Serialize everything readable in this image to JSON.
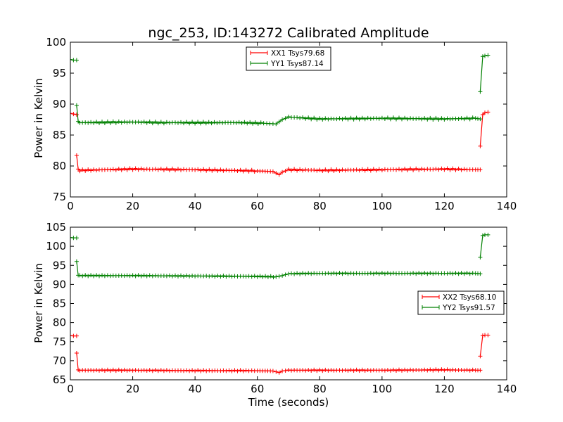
{
  "chart_data": [
    {
      "type": "line",
      "title": "ngc_253, ID:143272 Calibrated Amplitude",
      "xlabel": "",
      "ylabel": "Power in Kelvin",
      "xlim": [
        0,
        140
      ],
      "ylim": [
        75,
        100
      ],
      "xticks": [
        0,
        20,
        40,
        60,
        80,
        100,
        120,
        140
      ],
      "yticks": [
        75,
        80,
        85,
        90,
        95,
        100
      ],
      "legend_position": "top-center",
      "series": [
        {
          "name": "XX1 Tsys79.68",
          "color": "#ff0000",
          "marker": "+",
          "segments": [
            {
              "x": [
                0,
                1.0,
                2.0
              ],
              "y": [
                88.5,
                88.4,
                88.3
              ]
            },
            {
              "x": [
                2.0,
                2.5,
                3.0,
                20,
                40,
                60,
                65,
                67,
                68,
                70,
                80,
                100,
                120,
                130,
                131.5
              ],
              "y": [
                81.7,
                79.5,
                79.3,
                79.5,
                79.4,
                79.2,
                79.1,
                78.6,
                79.0,
                79.4,
                79.3,
                79.4,
                79.5,
                79.4,
                79.4
              ]
            },
            {
              "x": [
                131.5,
                132.3,
                133.0,
                134.0
              ],
              "y": [
                83.2,
                88.3,
                88.6,
                88.7
              ]
            }
          ]
        },
        {
          "name": "YY1 Tsys87.14",
          "color": "#008000",
          "marker": "+",
          "segments": [
            {
              "x": [
                0,
                1.0,
                2.0
              ],
              "y": [
                97.2,
                97.1,
                97.1
              ]
            },
            {
              "x": [
                2.0,
                2.5,
                3.0,
                20,
                30,
                40,
                55,
                62,
                66,
                68,
                70,
                80,
                100,
                120,
                130,
                131.5
              ],
              "y": [
                89.8,
                87.2,
                87.0,
                87.1,
                87.0,
                87.0,
                87.0,
                86.9,
                86.8,
                87.5,
                87.9,
                87.6,
                87.7,
                87.6,
                87.7,
                87.6
              ]
            },
            {
              "x": [
                131.5,
                132.3,
                133.0,
                134.0
              ],
              "y": [
                92.0,
                97.7,
                97.8,
                97.9
              ]
            }
          ]
        }
      ]
    },
    {
      "type": "line",
      "title": "",
      "xlabel": "Time (seconds)",
      "ylabel": "Power in Kelvin",
      "xlim": [
        0,
        140
      ],
      "ylim": [
        65,
        105
      ],
      "xticks": [
        0,
        20,
        40,
        60,
        80,
        100,
        120,
        140
      ],
      "yticks": [
        65,
        70,
        75,
        80,
        85,
        90,
        95,
        100,
        105
      ],
      "legend_position": "center-right",
      "series": [
        {
          "name": "XX2 Tsys68.10",
          "color": "#ff0000",
          "marker": "+",
          "segments": [
            {
              "x": [
                0,
                1.0,
                2.0
              ],
              "y": [
                76.6,
                76.5,
                76.5
              ]
            },
            {
              "x": [
                2.0,
                2.5,
                3.0,
                20,
                40,
                60,
                65,
                67,
                68,
                70,
                80,
                100,
                120,
                130,
                131.5
              ],
              "y": [
                72.0,
                67.6,
                67.5,
                67.5,
                67.4,
                67.4,
                67.3,
                66.9,
                67.3,
                67.5,
                67.5,
                67.5,
                67.6,
                67.5,
                67.5
              ]
            },
            {
              "x": [
                131.5,
                132.3,
                133.0,
                134.0
              ],
              "y": [
                71.2,
                76.6,
                76.7,
                76.7
              ]
            }
          ]
        },
        {
          "name": "YY2 Tsys91.57",
          "color": "#008000",
          "marker": "+",
          "segments": [
            {
              "x": [
                0,
                1.0,
                2.0
              ],
              "y": [
                102.3,
                102.2,
                102.2
              ]
            },
            {
              "x": [
                2.0,
                2.5,
                3.0,
                20,
                40,
                60,
                66,
                68,
                70,
                80,
                100,
                120,
                130,
                131.5
              ],
              "y": [
                96.0,
                92.4,
                92.3,
                92.3,
                92.2,
                92.1,
                92.0,
                92.3,
                92.8,
                92.9,
                92.9,
                92.9,
                92.9,
                92.8
              ]
            },
            {
              "x": [
                131.5,
                132.3,
                133.0,
                134.0
              ],
              "y": [
                97.1,
                102.8,
                103.0,
                103.0
              ]
            }
          ]
        }
      ]
    }
  ]
}
